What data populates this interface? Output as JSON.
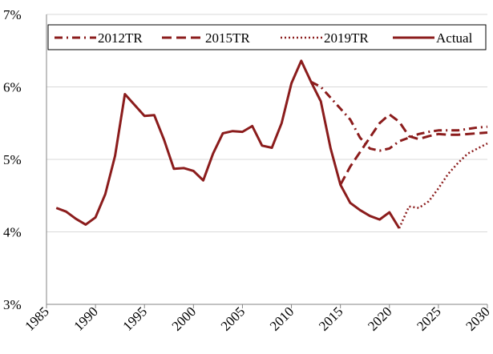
{
  "chart_data": {
    "type": "line",
    "xlim": [
      1985,
      2030
    ],
    "xticks": [
      1985,
      1990,
      1995,
      2000,
      2005,
      2010,
      2015,
      2020,
      2025,
      2030
    ],
    "ylim": [
      3,
      7
    ],
    "yticks": [
      {
        "value": 3,
        "label": "3%"
      },
      {
        "value": 4,
        "label": "4%"
      },
      {
        "value": 5,
        "label": "5%"
      },
      {
        "value": 6,
        "label": "6%"
      },
      {
        "value": 7,
        "label": "7%"
      }
    ],
    "grid": true,
    "legend": "top",
    "series": [
      {
        "name": "2012TR",
        "color": "#8b1c1c",
        "dash": "dashdot",
        "x": [
          2012,
          2013,
          2014,
          2015,
          2016,
          2017,
          2018,
          2019,
          2020,
          2021,
          2022,
          2023,
          2024,
          2025,
          2026,
          2027,
          2028,
          2029,
          2030
        ],
        "values": [
          6.07,
          6.0,
          5.85,
          5.7,
          5.55,
          5.3,
          5.15,
          5.12,
          5.15,
          5.25,
          5.3,
          5.35,
          5.38,
          5.4,
          5.4,
          5.4,
          5.42,
          5.44,
          5.45
        ]
      },
      {
        "name": "2015TR",
        "color": "#8b1c1c",
        "dash": "dashed",
        "x": [
          2015,
          2016,
          2017,
          2018,
          2019,
          2020,
          2021,
          2022,
          2023,
          2024,
          2025,
          2026,
          2027,
          2028,
          2029,
          2030
        ],
        "values": [
          4.65,
          4.9,
          5.1,
          5.3,
          5.5,
          5.62,
          5.52,
          5.32,
          5.28,
          5.32,
          5.35,
          5.34,
          5.34,
          5.35,
          5.36,
          5.37
        ]
      },
      {
        "name": "2019TR",
        "color": "#8b1c1c",
        "dash": "dotted",
        "x": [
          2021,
          2022,
          2023,
          2024,
          2025,
          2026,
          2027,
          2028,
          2029,
          2030
        ],
        "values": [
          4.05,
          4.35,
          4.33,
          4.42,
          4.6,
          4.8,
          4.95,
          5.08,
          5.15,
          5.22
        ]
      },
      {
        "name": "Actual",
        "color": "#8b1c1c",
        "dash": "solid",
        "x": [
          1986,
          1987,
          1988,
          1989,
          1990,
          1991,
          1992,
          1993,
          1994,
          1995,
          1996,
          1997,
          1998,
          1999,
          2000,
          2001,
          2002,
          2003,
          2004,
          2005,
          2006,
          2007,
          2008,
          2009,
          2010,
          2011,
          2012,
          2013,
          2014,
          2015,
          2016,
          2017,
          2018,
          2019,
          2020,
          2021
        ],
        "values": [
          4.33,
          4.28,
          4.18,
          4.1,
          4.2,
          4.52,
          5.05,
          5.9,
          5.75,
          5.6,
          5.61,
          5.27,
          4.87,
          4.88,
          4.84,
          4.71,
          5.08,
          5.36,
          5.39,
          5.38,
          5.46,
          5.19,
          5.16,
          5.5,
          6.05,
          6.36,
          6.07,
          5.8,
          5.15,
          4.65,
          4.4,
          4.3,
          4.22,
          4.17,
          4.27,
          4.05
        ]
      }
    ]
  }
}
